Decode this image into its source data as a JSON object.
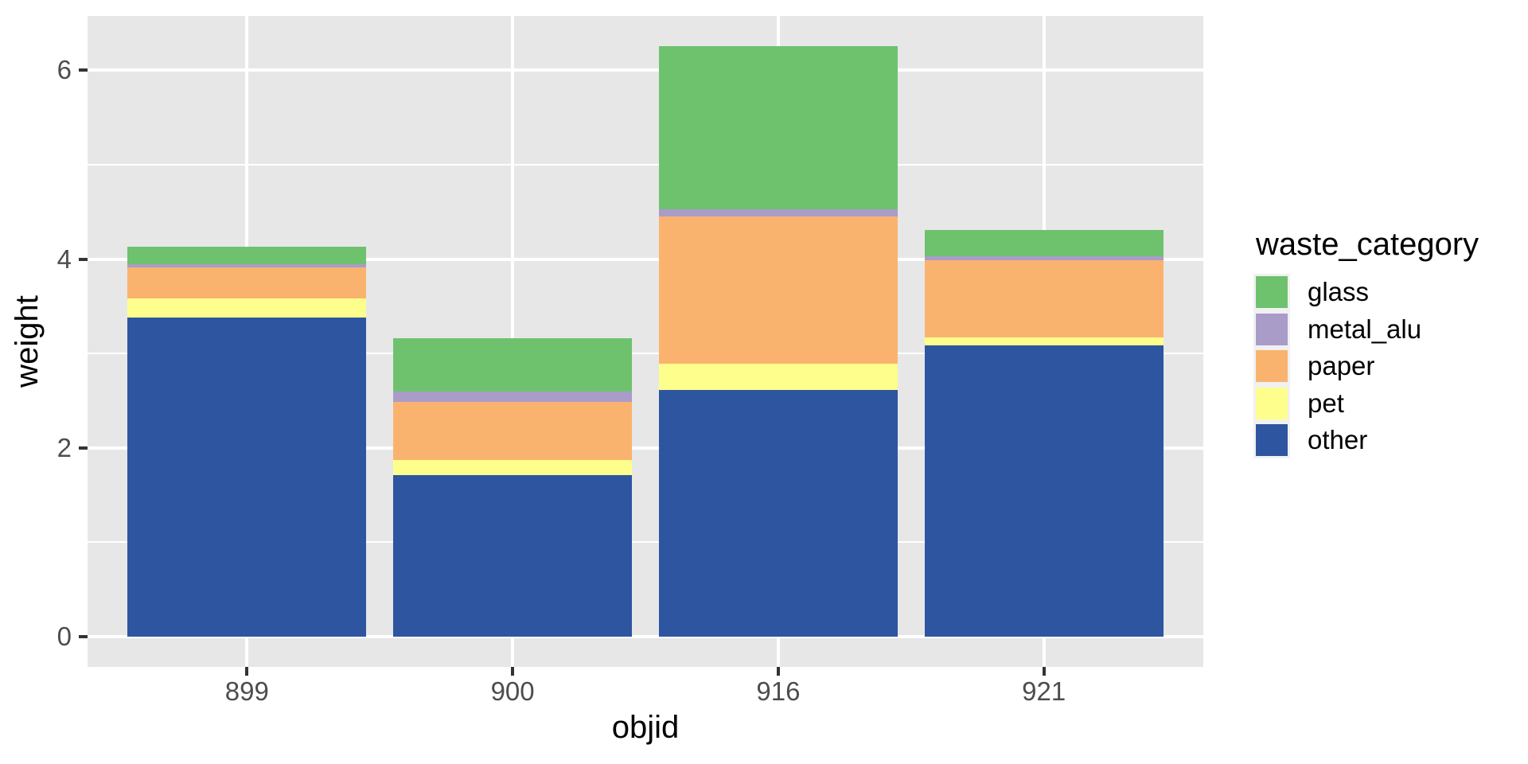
{
  "chart_data": {
    "type": "bar",
    "stacked": true,
    "title": "",
    "xlabel": "objid",
    "ylabel": "weight",
    "categories": [
      "899",
      "900",
      "916",
      "921"
    ],
    "series": [
      {
        "name": "other",
        "color": "#2E55A0",
        "values": [
          3.38,
          1.71,
          2.61,
          3.09
        ]
      },
      {
        "name": "pet",
        "color": "#FEFE8C",
        "values": [
          0.2,
          0.16,
          0.28,
          0.08
        ]
      },
      {
        "name": "paper",
        "color": "#FAB36E",
        "values": [
          0.33,
          0.62,
          1.56,
          0.82
        ]
      },
      {
        "name": "metal_alu",
        "color": "#A99CC9",
        "values": [
          0.04,
          0.11,
          0.08,
          0.04
        ]
      },
      {
        "name": "glass",
        "color": "#6EC26E",
        "values": [
          0.18,
          0.56,
          1.73,
          0.28
        ]
      }
    ],
    "stack_order_bottom_to_top": [
      "other",
      "pet",
      "paper",
      "metal_alu",
      "glass"
    ],
    "legend": {
      "title": "waste_category",
      "position": "right",
      "entries": [
        "glass",
        "metal_alu",
        "paper",
        "pet",
        "other"
      ]
    },
    "x_tick_labels": [
      "899",
      "900",
      "916",
      "921"
    ],
    "y_tick_labels": [
      "0",
      "2",
      "4",
      "6"
    ],
    "y_ticks": [
      0,
      2,
      4,
      6
    ],
    "y_minor_gridlines": [
      1,
      3,
      5
    ],
    "ylim": [
      0,
      6.6
    ],
    "grid": true,
    "legend_position": "right",
    "colors": {
      "panel_bg": "#E7E7E7",
      "gridline": "#FFFFFF",
      "tick_label": "#4D4D4D",
      "axis_title": "#000000",
      "tick_mark": "#333333",
      "legend_key_bg": "#F1F1F1",
      "background": "#FFFFFF"
    }
  }
}
